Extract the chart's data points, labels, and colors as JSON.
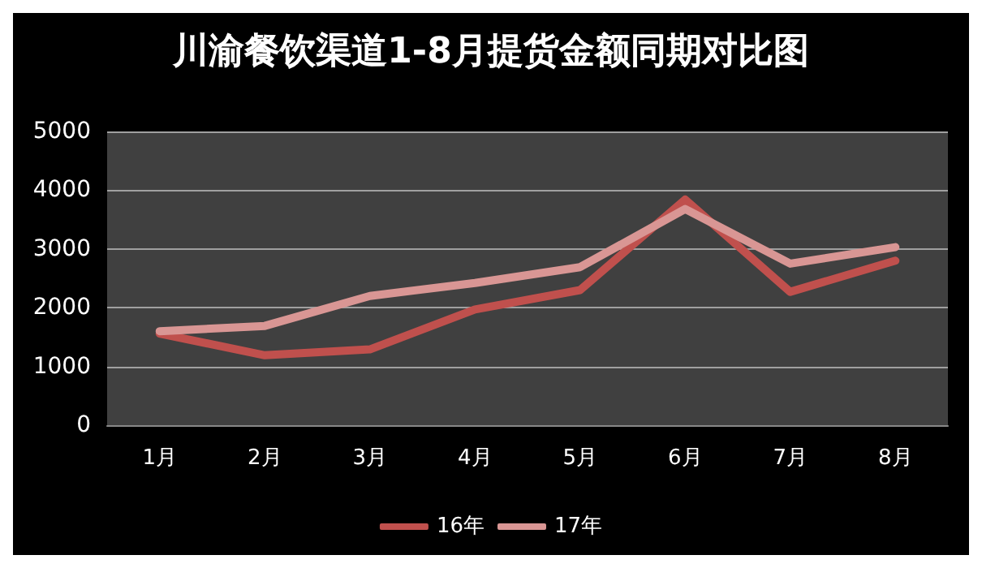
{
  "chart_data": {
    "type": "line",
    "title": "川渝餐饮渠道1-8月提货金额同期对比图",
    "categories": [
      "1月",
      "2月",
      "3月",
      "4月",
      "5月",
      "6月",
      "7月",
      "8月"
    ],
    "series": [
      {
        "name": "16年",
        "color": "#c0504d",
        "values": [
          1560,
          1190,
          1290,
          1970,
          2300,
          3840,
          2270,
          2800
        ]
      },
      {
        "name": "17年",
        "color": "#d99694",
        "values": [
          1600,
          1690,
          2200,
          2420,
          2690,
          3680,
          2750,
          3030
        ]
      }
    ],
    "ylim": [
      0,
      5000
    ],
    "yticks": [
      0,
      1000,
      2000,
      3000,
      4000,
      5000
    ],
    "grid": "y",
    "legend": "bottom",
    "marker": "none",
    "line_style": "solid"
  }
}
